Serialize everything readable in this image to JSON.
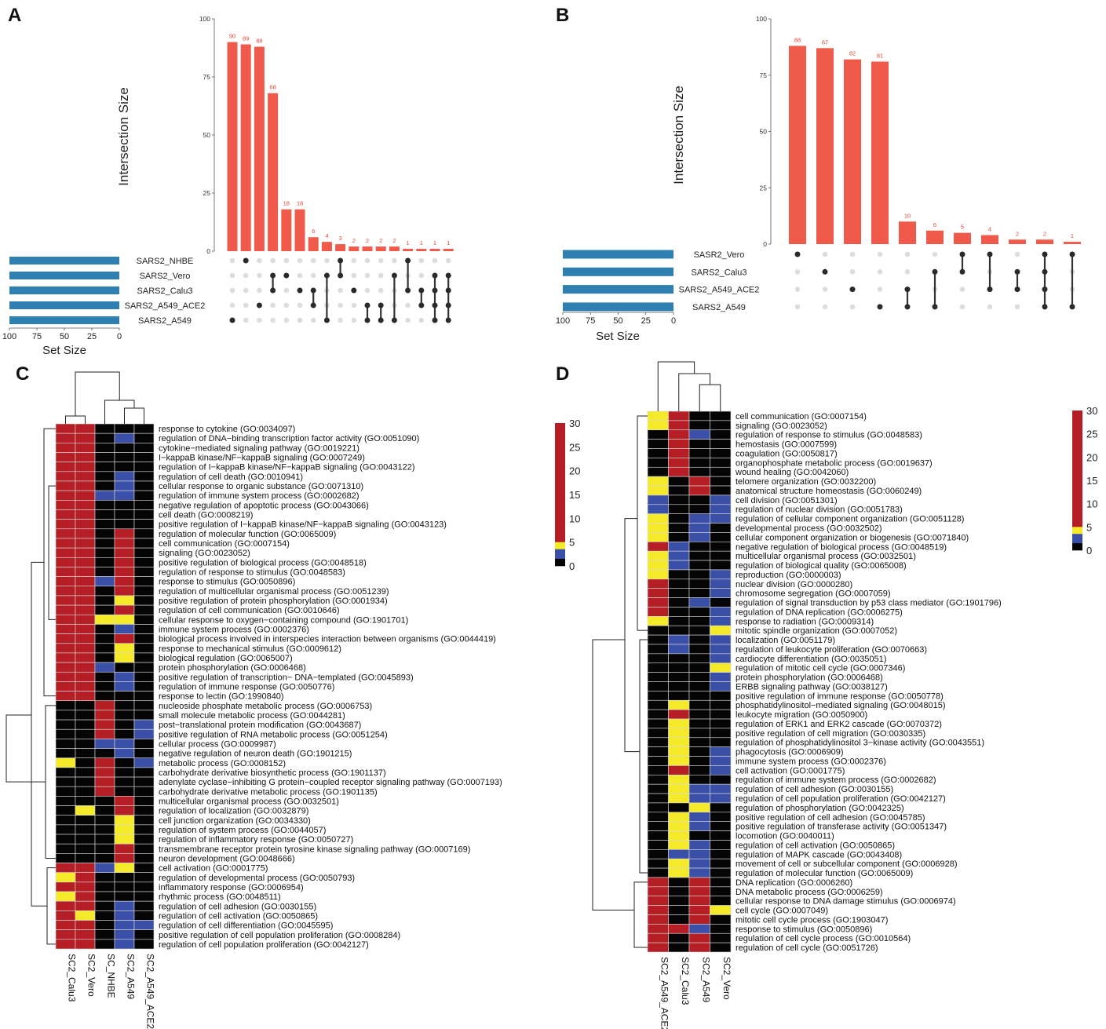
{
  "panel_letters": [
    "A",
    "B",
    "C",
    "D"
  ],
  "chart_data": [
    {
      "panel": "A",
      "type": "upset",
      "ylabel": "Intersection Size",
      "ylim": [
        0,
        100
      ],
      "yticks": [
        0,
        25,
        50,
        75,
        100
      ],
      "sets": [
        "SARS2_NHBE",
        "SARS2_Vero",
        "SARS2_Calu3",
        "SARS2_A549_ACE2",
        "SARS2_A549"
      ],
      "set_size_label": "Set Size",
      "set_size_ticks": [
        100,
        75,
        50,
        25,
        0
      ],
      "set_sizes": [
        100,
        100,
        100,
        100,
        100
      ],
      "values": [
        90,
        89,
        88,
        68,
        18,
        18,
        6,
        4,
        3,
        2,
        2,
        2,
        2,
        1,
        1,
        1,
        1
      ],
      "memberships": [
        [
          4
        ],
        [
          0
        ],
        [
          3
        ],
        [
          1,
          2
        ],
        [
          1
        ],
        [
          2
        ],
        [
          2,
          3
        ],
        [
          1,
          4
        ],
        [
          1,
          0
        ],
        [
          2
        ],
        [
          3,
          4
        ],
        [
          3,
          4
        ],
        [
          1,
          4
        ],
        [
          0,
          2
        ],
        [
          2,
          3
        ],
        [
          1,
          2,
          3,
          4
        ],
        [
          1,
          2,
          3,
          4
        ]
      ]
    },
    {
      "panel": "B",
      "type": "upset",
      "ylabel": "Intersection Size",
      "ylim": [
        0,
        100
      ],
      "yticks": [
        0,
        25,
        50,
        75,
        100
      ],
      "sets": [
        "SASR2_Vero",
        "SARS2_Calu3",
        "SARS2_A549_ACE2",
        "SARS2_A549"
      ],
      "set_size_label": "Set Size",
      "set_size_ticks": [
        100,
        75,
        50,
        25,
        0
      ],
      "set_sizes": [
        100,
        100,
        100,
        100
      ],
      "values": [
        88,
        87,
        82,
        81,
        10,
        6,
        5,
        4,
        2,
        2,
        1
      ],
      "memberships": [
        [
          0
        ],
        [
          1
        ],
        [
          2
        ],
        [
          3
        ],
        [
          2,
          3
        ],
        [
          1,
          3
        ],
        [
          0,
          1
        ],
        [
          0,
          2
        ],
        [
          1,
          2
        ],
        [
          0,
          1,
          2,
          3
        ],
        [
          0,
          3
        ]
      ]
    },
    {
      "panel": "C",
      "type": "heatmap",
      "columns": [
        "SC2_Calu3",
        "SC2_Vero",
        "SC_NHBE",
        "SC2_A549",
        "SC2_A549_ACE2"
      ],
      "colorbar": {
        "ticks": [
          30,
          25,
          20,
          15,
          10,
          5,
          0
        ],
        "range": [
          0,
          30
        ],
        "colors": {
          "high": "#b41e24",
          "mid": "#f4ea2a",
          "low": "#3a4fa8",
          "zero": "#050505"
        }
      },
      "rows": [
        "response to cytokine (GO:0034097)",
        "regulation of DNA−binding transcription factor activity (GO:0051090)",
        "cytokine−mediated signaling pathway (GO:0019221)",
        "I−kappaB kinase/NF−kappaB signaling (GO:0007249)",
        "regulation of I−kappaB kinase/NF−kappaB signaling (GO:0043122)",
        "regulation of cell death (GO:0010941)",
        "cellular response to organic substance (GO:0071310)",
        "regulation of immune system process (GO:0002682)",
        "negative regulation of apoptotic process (GO:0043066)",
        "cell death (GO:0008219)",
        "positive regulation of I−kappaB kinase/NF−kappaB signaling (GO:0043123)",
        "regulation of molecular function (GO:0065009)",
        "cell communication (GO:0007154)",
        "signaling (GO:0023052)",
        "positive regulation of biological process (GO:0048518)",
        "regulation of response to stimulus (GO:0048583)",
        "response to stimulus (GO:0050896)",
        "regulation of multicellular organismal process (GO:0051239)",
        "positive regulation of protein phosphorylation (GO:0001934)",
        "regulation of cell communication (GO:0010646)",
        "cellular response to oxygen−containing compound (GO:1901701)",
        "immune system process (GO:0002376)",
        "biological process involved in interspecies interaction between organisms (GO:0044419)",
        "response to mechanical stimulus (GO:0009612)",
        "biological regulation (GO:0065007)",
        "protein phosphorylation (GO:0006468)",
        "positive regulation of transcription− DNA−templated (GO:0045893)",
        "regulation of immune response (GO:0050776)",
        "response to lectin (GO:1990840)",
        "nucleoside phosphate metabolic process (GO:0006753)",
        "small molecule metabolic process (GO:0044281)",
        "post−translational protein modification (GO:0043687)",
        "positive regulation of RNA metabolic process (GO:0051254)",
        "cellular process (GO:0009987)",
        "negative regulation of neuron death (GO:1901215)",
        "metabolic process (GO:0008152)",
        "carbohydrate derivative biosynthetic process (GO:1901137)",
        "adenylate cyclase−inhibiting G protein−coupled receptor signaling pathway (GO:0007193)",
        "carbohydrate derivative metabolic process (GO:1901135)",
        "multicellular organismal process (GO:0032501)",
        "regulation of localization (GO:0032879)",
        "cell junction organization (GO:0034330)",
        "regulation of system process (GO:0044057)",
        "regulation of inflammatory response (GO:0050727)",
        "transmembrane receptor protein tyrosine kinase signaling pathway (GO:0007169)",
        "neuron development (GO:0048666)",
        "cell activation (GO:0001775)",
        "regulation of developmental process (GO:0050793)",
        "inflammatory response (GO:0006954)",
        "rhythmic process (GO:0048511)",
        "regulation of cell adhesion (GO:0030155)",
        "regulation of cell activation (GO:0050865)",
        "regulation of cell differentiation (GO:0045595)",
        "positive regulation of cell population proliferation (GO:0008284)",
        "regulation of cell population proliferation (GO:0042127)"
      ],
      "cells": [
        "RRKKK",
        "RRKBK",
        "RRKKK",
        "RRKKK",
        "RRKKK",
        "RRKBK",
        "RRKBK",
        "RRBBK",
        "RRKKK",
        "RRKKK",
        "RRKKK",
        "RRKRK",
        "RRKRK",
        "RRKRK",
        "RRKRK",
        "RRKRK",
        "RRBRK",
        "RRKRK",
        "RRKYK",
        "RRKRK",
        "RRYYK",
        "RRKBK",
        "RRKRK",
        "RRKYK",
        "RRKYK",
        "RRBKK",
        "RRKBK",
        "RRKBK",
        "RRKKK",
        "KKRKK",
        "KKRKK",
        "KKRKB",
        "KKRKB",
        "KKBBK",
        "KKKBK",
        "YKRKB",
        "KKRKK",
        "KKRKK",
        "KKRKK",
        "KKKRK",
        "KYKRK",
        "KKKYK",
        "KKKYK",
        "KKKYK",
        "KKKRK",
        "KKKRK",
        "RRBYK",
        "YRKKK",
        "RRKKK",
        "YRKKK",
        "RRKBK",
        "RYKBK",
        "RRKBB",
        "RRKBK",
        "RRKBK"
      ]
    },
    {
      "panel": "D",
      "type": "heatmap",
      "columns": [
        "SC2_A549_ACE2",
        "SC2_Calu3",
        "SC2_A549",
        "SC2_Vero"
      ],
      "colorbar": {
        "ticks": [
          30,
          25,
          20,
          15,
          10,
          5,
          0
        ],
        "range": [
          0,
          30
        ],
        "colors": {
          "high": "#b41e24",
          "mid": "#f4ea2a",
          "low": "#3a4fa8",
          "zero": "#050505"
        }
      },
      "rows": [
        "cell communication (GO:0007154)",
        "signaling (GO:0023052)",
        "regulation of response to stimulus (GO:0048583)",
        "hemostasis (GO:0007599)",
        "coagulation (GO:0050817)",
        "organophosphate metabolic process (GO:0019637)",
        "wound healing (GO:0042060)",
        "telomere organization (GO:0032200)",
        "anatomical structure homeostasis (GO:0060249)",
        "cell division (GO:0051301)",
        "regulation of nuclear division (GO:0051783)",
        "regulation of cellular component organization (GO:0051128)",
        "developmental process (GO:0032502)",
        "cellular component organization or biogenesis (GO:0071840)",
        "negative regulation of biological process (GO:0048519)",
        "multicellular organismal process (GO:0032501)",
        "regulation of biological quality (GO:0065008)",
        "reproduction (GO:0000003)",
        "nuclear division (GO:0000280)",
        "chromosome segregation (GO:0007059)",
        "regulation of signal transduction by p53 class mediator (GO:1901796)",
        "regulation of DNA replication (GO:0006275)",
        "response to radiation (GO:0009314)",
        "mitotic spindle organization (GO:0007052)",
        "localization (GO:0051179)",
        "regulation of leukocyte proliferation (GO:0070663)",
        "cardiocyte differentiation (GO:0035051)",
        "regulation of mitotic cell cycle (GO:0007346)",
        "protein phosphorylation (GO:0006468)",
        "ERBB signaling pathway (GO:0038127)",
        "positive regulation of immune response (GO:0050778)",
        "phosphatidylinositol−mediated signaling (GO:0048015)",
        "leukocyte migration (GO:0050900)",
        "regulation of ERK1 and ERK2 cascade (GO:0070372)",
        "positive regulation of cell migration (GO:0030335)",
        "regulation of phosphatidylinositol 3−kinase activity (GO:0043551)",
        "phagocytosis (GO:0006909)",
        "immune system process (GO:0002376)",
        "cell activation (GO:0001775)",
        "regulation of immune system process (GO:0002682)",
        "regulation of cell adhesion (GO:0030155)",
        "regulation of cell population proliferation (GO:0042127)",
        "regulation of phosphorylation (GO:0042325)",
        "positive regulation of cell adhesion (GO:0045785)",
        "positive regulation of transferase activity (GO:0051347)",
        "locomotion (GO:0040011)",
        "regulation of cell activation (GO:0050865)",
        "regulation of MAPK cascade (GO:0043408)",
        "movement of cell or subcellular component (GO:0006928)",
        "regulation of molecular function (GO:0065009)",
        "DNA replication (GO:0006260)",
        "DNA metabolic process (GO:0006259)",
        "cellular response to DNA damage stimulus (GO:0006974)",
        "cell cycle (GO:0007049)",
        "mitotic cell cycle process (GO:1903047)",
        "response to stimulus (GO:0050896)",
        "regulation of cell cycle process (GO:0010564)",
        "regulation of cell cycle (GO:0051726)"
      ],
      "cells": [
        "YRKK",
        "YRKK",
        "KRBK",
        "KRKK",
        "KRKK",
        "KRKK",
        "KRKK",
        "YKRK",
        "YKRK",
        "BKKB",
        "BKKB",
        "YKBB",
        "YKBK",
        "YKBK",
        "RBKK",
        "YBKK",
        "YBKK",
        "YKKB",
        "RKKB",
        "RKKB",
        "RKBK",
        "RKKB",
        "YKKB",
        "KKKY",
        "KBKB",
        "KBKB",
        "KKKB",
        "KKKY",
        "KKKB",
        "KKKB",
        "KKKK",
        "KYKK",
        "KRKK",
        "KYKK",
        "KYKK",
        "KYKK",
        "KYKB",
        "KYKB",
        "KRKB",
        "KYKK",
        "KYBB",
        "KYBB",
        "KKYK",
        "KYBK",
        "KYBK",
        "KYKK",
        "KYBK",
        "KBBK",
        "KYBK",
        "KYBK",
        "RKRK",
        "RKRK",
        "RKRK",
        "RKRY",
        "RKRK",
        "RRBK",
        "RKRK",
        "RKRK"
      ]
    }
  ]
}
